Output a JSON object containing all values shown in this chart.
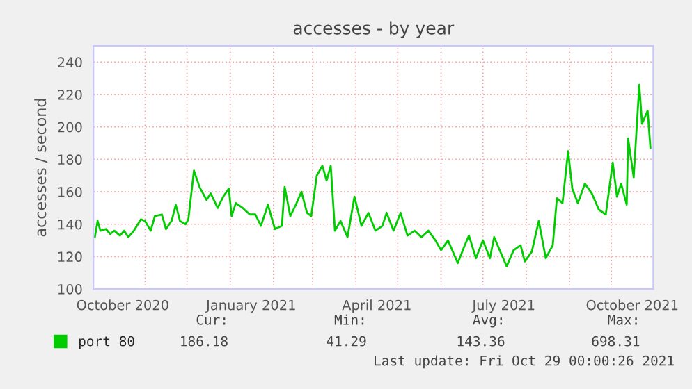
{
  "chart_data": {
    "type": "line",
    "title": "accesses - by year",
    "ylabel": "accesses / second",
    "x": [
      "2020-09-26",
      "2020-09-28",
      "2020-09-30",
      "2020-10-04",
      "2020-10-07",
      "2020-10-10",
      "2020-10-14",
      "2020-10-17",
      "2020-10-20",
      "2020-10-24",
      "2020-10-29",
      "2020-11-01",
      "2020-11-05",
      "2020-11-08",
      "2020-11-13",
      "2020-11-16",
      "2020-11-20",
      "2020-11-23",
      "2020-11-26",
      "2020-11-30",
      "2020-12-02",
      "2020-12-06",
      "2020-12-10",
      "2020-12-15",
      "2020-12-18",
      "2020-12-23",
      "2020-12-27",
      "2020-12-31",
      "2021-01-02",
      "2021-01-05",
      "2021-01-10",
      "2021-01-15",
      "2021-01-19",
      "2021-01-23",
      "2021-01-28",
      "2021-02-02",
      "2021-02-07",
      "2021-02-09",
      "2021-02-13",
      "2021-02-17",
      "2021-02-21",
      "2021-02-25",
      "2021-02-28",
      "2021-03-04",
      "2021-03-08",
      "2021-03-11",
      "2021-03-14",
      "2021-03-17",
      "2021-03-21",
      "2021-03-26",
      "2021-03-31",
      "2021-04-05",
      "2021-04-10",
      "2021-04-15",
      "2021-04-20",
      "2021-04-23",
      "2021-04-28",
      "2021-05-03",
      "2021-05-08",
      "2021-05-13",
      "2021-05-18",
      "2021-05-23",
      "2021-05-28",
      "2021-06-01",
      "2021-06-06",
      "2021-06-13",
      "2021-06-18",
      "2021-06-21",
      "2021-06-26",
      "2021-07-01",
      "2021-07-06",
      "2021-07-09",
      "2021-07-14",
      "2021-07-18",
      "2021-07-23",
      "2021-07-28",
      "2021-07-31",
      "2021-08-05",
      "2021-08-10",
      "2021-08-15",
      "2021-08-20",
      "2021-08-23",
      "2021-08-27",
      "2021-08-31",
      "2021-09-03",
      "2021-09-07",
      "2021-09-12",
      "2021-09-17",
      "2021-09-22",
      "2021-09-27",
      "2021-10-02",
      "2021-10-05",
      "2021-10-08",
      "2021-10-12",
      "2021-10-13",
      "2021-10-17",
      "2021-10-21",
      "2021-10-23",
      "2021-10-27",
      "2021-10-29"
    ],
    "series": [
      {
        "name": "port 80",
        "color": "#00cc00",
        "values": [
          132,
          142,
          136,
          137,
          134,
          136,
          133,
          136,
          132,
          136,
          143,
          142,
          136,
          145,
          146,
          137,
          142,
          152,
          142,
          140,
          143,
          173,
          163,
          155,
          159,
          150,
          157,
          162,
          145,
          153,
          150,
          146,
          146,
          139,
          152,
          137,
          139,
          163,
          145,
          152,
          160,
          147,
          145,
          170,
          176,
          167,
          176,
          136,
          142,
          132,
          157,
          139,
          147,
          136,
          139,
          147,
          136,
          147,
          133,
          136,
          132,
          136,
          130,
          124,
          130,
          116,
          127,
          133,
          119,
          130,
          119,
          132,
          122,
          114,
          124,
          127,
          117,
          123,
          142,
          119,
          127,
          156,
          153,
          185,
          162,
          153,
          165,
          159,
          149,
          146,
          178,
          157,
          165,
          152,
          193,
          169,
          226,
          202,
          210,
          187
        ]
      }
    ],
    "xlim": [
      "2020-09-25",
      "2021-10-31"
    ],
    "xticks": [
      {
        "value": "2020-10-16",
        "label": "October 2020"
      },
      {
        "value": "2020-11-01",
        "label": null
      },
      {
        "value": "2020-12-01",
        "label": null
      },
      {
        "value": "2021-01-01",
        "label": null
      },
      {
        "value": "2021-01-16",
        "label": "January 2021"
      },
      {
        "value": "2021-02-01",
        "label": null
      },
      {
        "value": "2021-03-01",
        "label": null
      },
      {
        "value": "2021-04-01",
        "label": null
      },
      {
        "value": "2021-04-16",
        "label": "April 2021"
      },
      {
        "value": "2021-05-01",
        "label": null
      },
      {
        "value": "2021-06-01",
        "label": null
      },
      {
        "value": "2021-07-01",
        "label": null
      },
      {
        "value": "2021-07-16",
        "label": "July 2021"
      },
      {
        "value": "2021-08-01",
        "label": null
      },
      {
        "value": "2021-09-01",
        "label": null
      },
      {
        "value": "2021-10-01",
        "label": null
      },
      {
        "value": "2021-10-16",
        "label": "October 2021"
      }
    ],
    "ylim": [
      100,
      250
    ],
    "yticks": [
      100,
      120,
      140,
      160,
      180,
      200,
      220,
      240
    ],
    "grid": true,
    "legend": "bottom left",
    "marker": "none",
    "line_style": "solid",
    "annotations": [
      "Cur:",
      "Min:",
      "Avg:",
      "Max:",
      "186.18",
      "41.29",
      "143.36",
      "698.31",
      "Last update: Fri Oct 29 00:00:26 2021"
    ]
  }
}
